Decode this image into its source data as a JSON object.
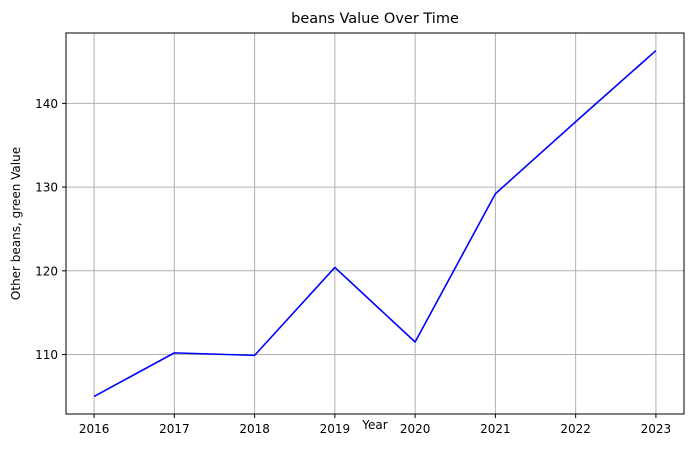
{
  "chart_data": {
    "type": "line",
    "title": "beans Value Over Time",
    "xlabel": "Year",
    "ylabel": "Other beans, green Value",
    "x": [
      2016,
      2017,
      2018,
      2019,
      2020,
      2021,
      2022,
      2023
    ],
    "x_ticks": [
      "2016",
      "2017",
      "2018",
      "2019",
      "2020",
      "2021",
      "2022",
      "2023"
    ],
    "y_ticks": [
      "110",
      "120",
      "130",
      "140"
    ],
    "series": [
      {
        "values": [
          105.0,
          110.2,
          109.9,
          120.4,
          111.5,
          129.2,
          137.8,
          146.3
        ],
        "color": "#0000ff"
      }
    ],
    "xlim": [
      2015.65,
      2023.35
    ],
    "ylim": [
      102.9,
      148.4
    ],
    "grid": true
  }
}
